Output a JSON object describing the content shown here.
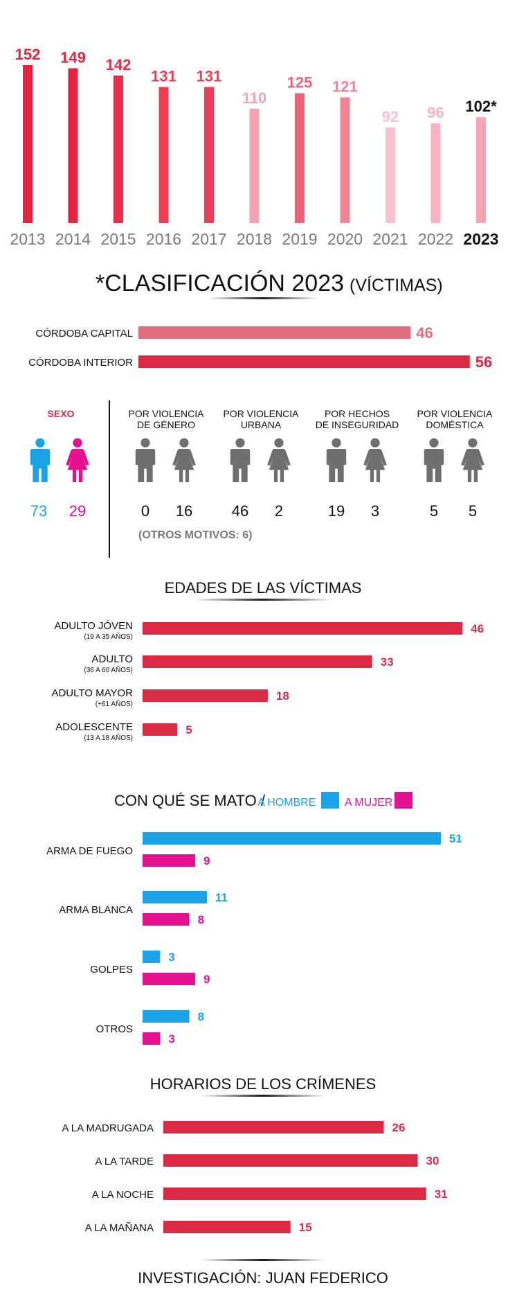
{
  "colors": {
    "red": "#dc2a44",
    "mid": "#e5596d",
    "pink": "#f4a3b2",
    "blue": "#1aa3e6",
    "magenta": "#e5128f",
    "gray": "#6f6f6f"
  },
  "chart_data": [
    {
      "type": "bar",
      "title": "",
      "categories": [
        "2013",
        "2014",
        "2015",
        "2016",
        "2017",
        "2018",
        "2019",
        "2020",
        "2021",
        "2022",
        "2023"
      ],
      "values": [
        152,
        149,
        142,
        131,
        131,
        110,
        125,
        121,
        92,
        96,
        102
      ],
      "labels": [
        "152",
        "149",
        "142",
        "131",
        "131",
        "110",
        "125",
        "121",
        "92",
        "96",
        "102*"
      ],
      "colors": [
        "#e8213e",
        "#e8233f",
        "#e92f48",
        "#ea3f56",
        "#ea3f56",
        "#f4a3b2",
        "#ea6377",
        "#ef8696",
        "#f8c3ce",
        "#f6b3c0",
        "#f5a6b5"
      ],
      "ylim": [
        0,
        160
      ]
    },
    {
      "type": "bar",
      "title": "*CLASIFICACIÓN 2023",
      "subtitle": "(VÍCTIMAS)",
      "categories": [
        "CÓRDOBA CAPITAL",
        "CÓRDOBA INTERIOR"
      ],
      "values": [
        46,
        56
      ],
      "colors": [
        "#e0707f",
        "#dc2a44"
      ]
    },
    {
      "type": "bar",
      "title": "EDADES DE LAS VÍCTIMAS",
      "categories": [
        "ADULTO JÓVEN",
        "ADULTO",
        "ADULTO MAYOR",
        "ADOLESCENTE"
      ],
      "sublabels": [
        "(19 A 35 AÑOS)",
        "(36 A 60 AÑOS)",
        "(+61 AÑOS)",
        "(13 A 18 AÑOS)"
      ],
      "values": [
        46,
        33,
        18,
        5
      ]
    },
    {
      "type": "bar",
      "title": "CON QUÉ SE MATO /",
      "categories": [
        "ARMA DE FUEGO",
        "ARMA BLANCA",
        "GOLPES",
        "OTROS"
      ],
      "series": [
        {
          "name": "A HOMBRE",
          "values": [
            51,
            11,
            3,
            8
          ],
          "color": "#1aa3e6"
        },
        {
          "name": "A MUJER",
          "values": [
            9,
            8,
            9,
            3
          ],
          "color": "#e5128f"
        }
      ]
    },
    {
      "type": "bar",
      "title": "HORARIOS DE LOS CRÍMENES",
      "categories": [
        "A LA MADRUGADA",
        "A LA TARDE",
        "A LA NOCHE",
        "A LA MAÑANA"
      ],
      "values": [
        26,
        30,
        31,
        15
      ]
    }
  ],
  "sexo": {
    "title": "SEXO",
    "male": "73",
    "female": "29"
  },
  "motivos": [
    {
      "title1": "POR VIOLENCIA",
      "title2": "DE GÉNERO",
      "male": "0",
      "female": "16"
    },
    {
      "title1": "POR VIOLENCIA",
      "title2": "URBANA",
      "male": "46",
      "female": "2"
    },
    {
      "title1": "POR HECHOS",
      "title2": "DE INSEGURIDAD",
      "male": "19",
      "female": "3"
    },
    {
      "title1": "POR VIOLENCIA",
      "title2": "DOMÉSTICA",
      "male": "5",
      "female": "5"
    }
  ],
  "otros_motivos": "(OTROS MOTIVOS: 6)",
  "footer": "INVESTIGACIÓN: JUAN FEDERICO"
}
